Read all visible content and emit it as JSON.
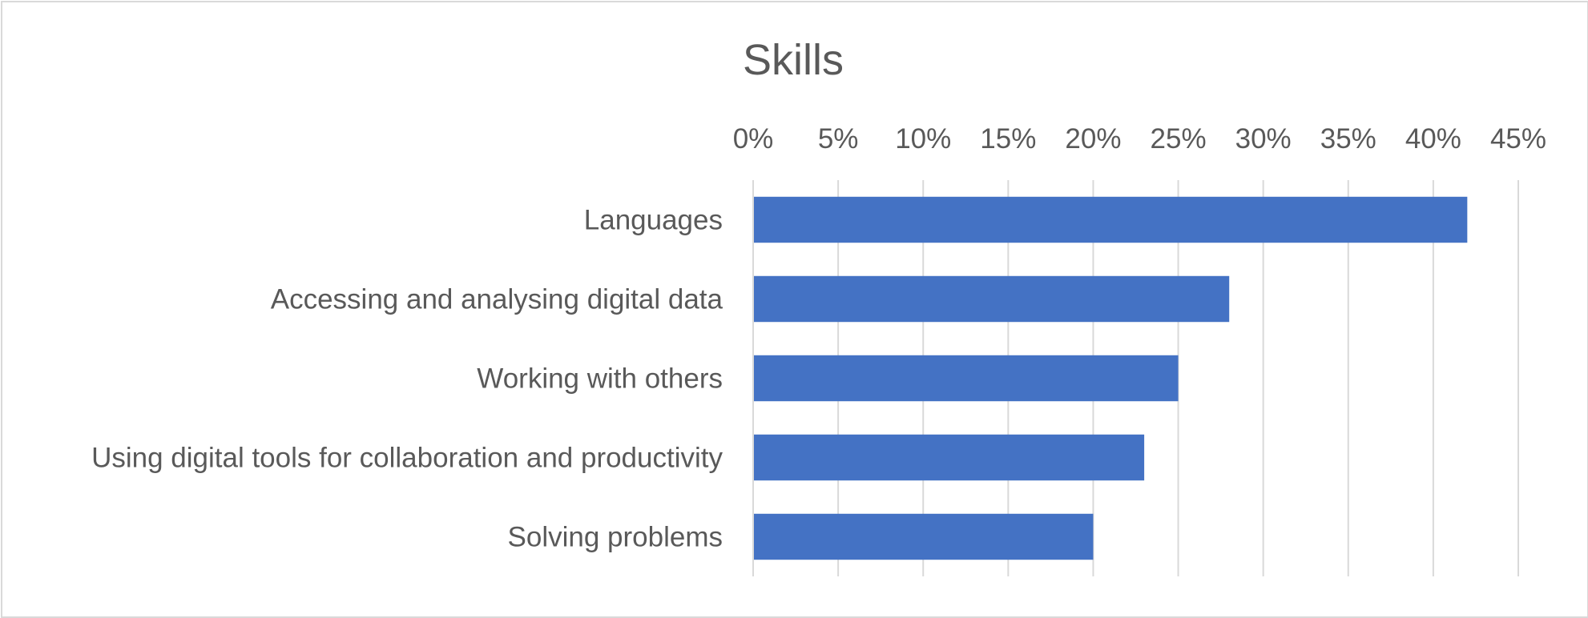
{
  "chart_data": {
    "type": "bar",
    "orientation": "horizontal",
    "title": "Skills",
    "xlabel": "",
    "ylabel": "",
    "categories": [
      "Languages",
      "Accessing and analysing digital data",
      "Working with others",
      "Using digital tools for collaboration and productivity",
      "Solving problems"
    ],
    "values": [
      42,
      28,
      25,
      23,
      20
    ],
    "value_format": "percent",
    "xlim": [
      0,
      45
    ],
    "x_ticks": [
      0,
      5,
      10,
      15,
      20,
      25,
      30,
      35,
      40,
      45
    ],
    "x_tick_labels": [
      "0%",
      "5%",
      "10%",
      "15%",
      "20%",
      "25%",
      "30%",
      "35%",
      "40%",
      "45%"
    ],
    "x_axis_position": "top",
    "grid": true,
    "legend": "none",
    "bar_color": "#4472C4",
    "grid_color": "#d9d9d9",
    "text_color": "#595959"
  }
}
